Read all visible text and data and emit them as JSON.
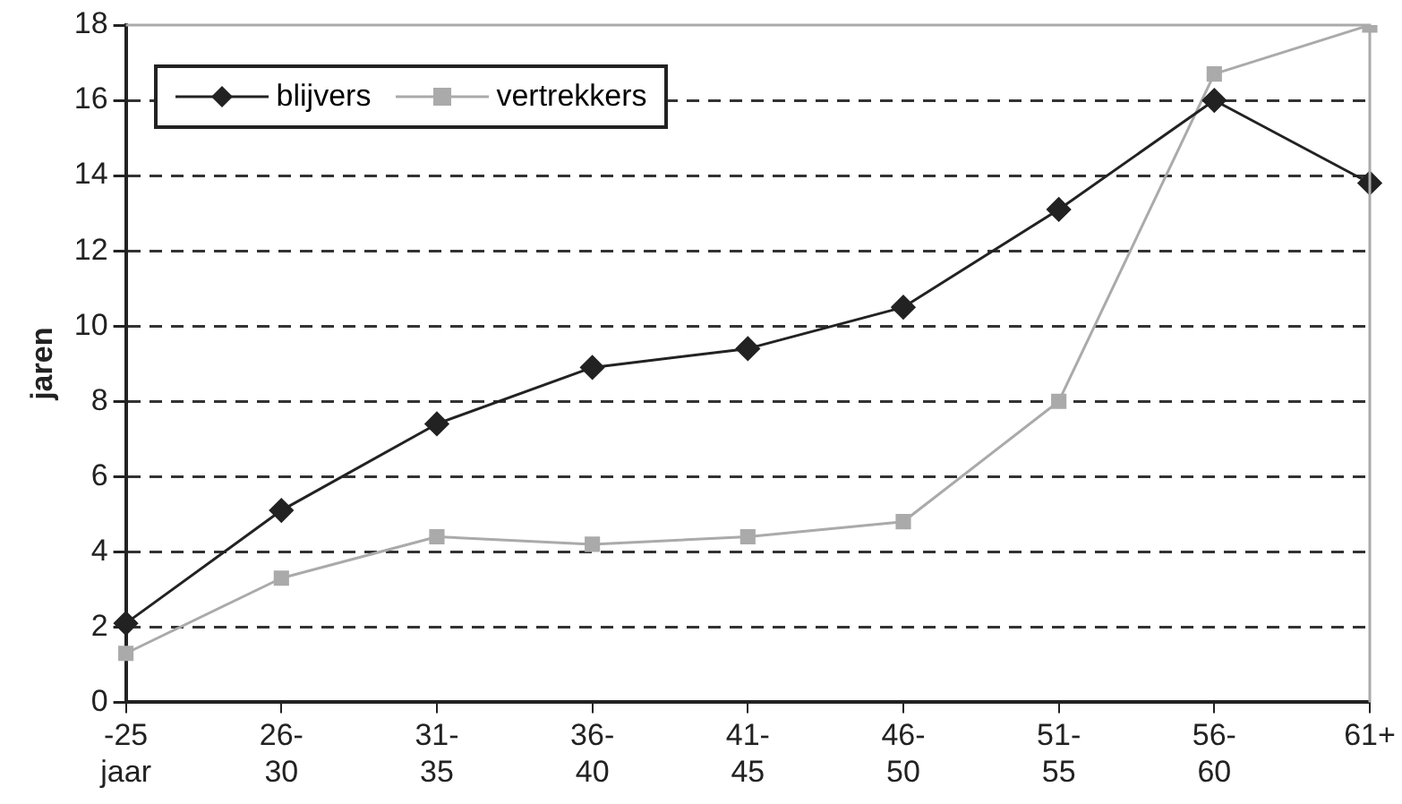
{
  "chart_data": {
    "type": "line",
    "ylabel": "jaren",
    "categories": [
      "-25 jaar",
      "26-30",
      "31-35",
      "36-40",
      "41-45",
      "46-50",
      "51-55",
      "56-60",
      "61+"
    ],
    "series": [
      {
        "name": "blijvers",
        "color": "#222222",
        "marker": "diamond",
        "values": [
          2.1,
          5.1,
          7.4,
          8.9,
          9.4,
          10.5,
          13.1,
          16.0,
          13.8
        ]
      },
      {
        "name": "vertrekkers",
        "color": "#aaaaaa",
        "marker": "square",
        "values": [
          1.3,
          3.3,
          4.4,
          4.2,
          4.4,
          4.8,
          8.0,
          16.7,
          18.0
        ]
      }
    ],
    "ylim": [
      0,
      18
    ],
    "yticks": [
      0,
      2,
      4,
      6,
      8,
      10,
      12,
      14,
      16,
      18
    ],
    "grid": "y",
    "legend": "top left"
  }
}
